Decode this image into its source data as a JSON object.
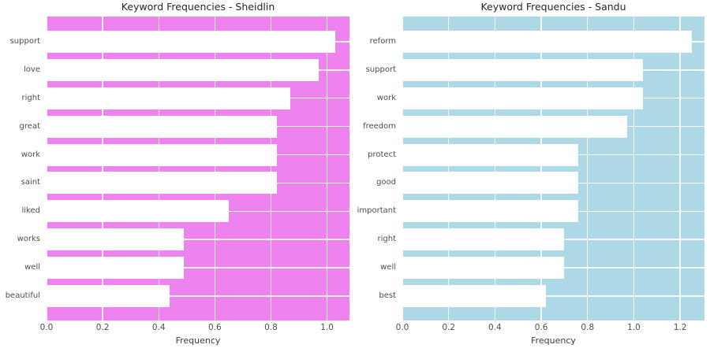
{
  "page": {
    "background": "#ffffff"
  },
  "chart_data": [
    {
      "type": "bar",
      "orientation": "horizontal",
      "title": "Keyword Frequencies - Sheidlin",
      "xlabel": "Frequency",
      "categories": [
        "support",
        "love",
        "right",
        "great",
        "work",
        "saint",
        "liked",
        "works",
        "well",
        "beautiful"
      ],
      "values": [
        1.03,
        0.97,
        0.87,
        0.82,
        0.82,
        0.82,
        0.65,
        0.49,
        0.49,
        0.44
      ],
      "ticks": [
        "0.0",
        "0.2",
        "0.4",
        "0.6",
        "0.8",
        "1.0"
      ],
      "axis_max": 1.08,
      "grid": true,
      "legend": false,
      "bg_color": "#ee82ee",
      "bar_color": "#ffffff",
      "grid_color": "rgba(255,255,255,0.88)"
    },
    {
      "type": "bar",
      "orientation": "horizontal",
      "title": "Keyword Frequencies - Sandu",
      "xlabel": "Frequency",
      "categories": [
        "reform",
        "support",
        "work",
        "freedom",
        "protect",
        "good",
        "important",
        "right",
        "well",
        "best"
      ],
      "values": [
        1.25,
        1.04,
        1.04,
        0.97,
        0.76,
        0.76,
        0.76,
        0.7,
        0.7,
        0.62
      ],
      "ticks": [
        "0.0",
        "0.2",
        "0.4",
        "0.6",
        "0.8",
        "1.0",
        "1.2"
      ],
      "axis_max": 1.305,
      "grid": true,
      "legend": false,
      "bg_color": "#add8e6",
      "bar_color": "#ffffff",
      "grid_color": "rgba(255,255,255,0.88)"
    }
  ]
}
